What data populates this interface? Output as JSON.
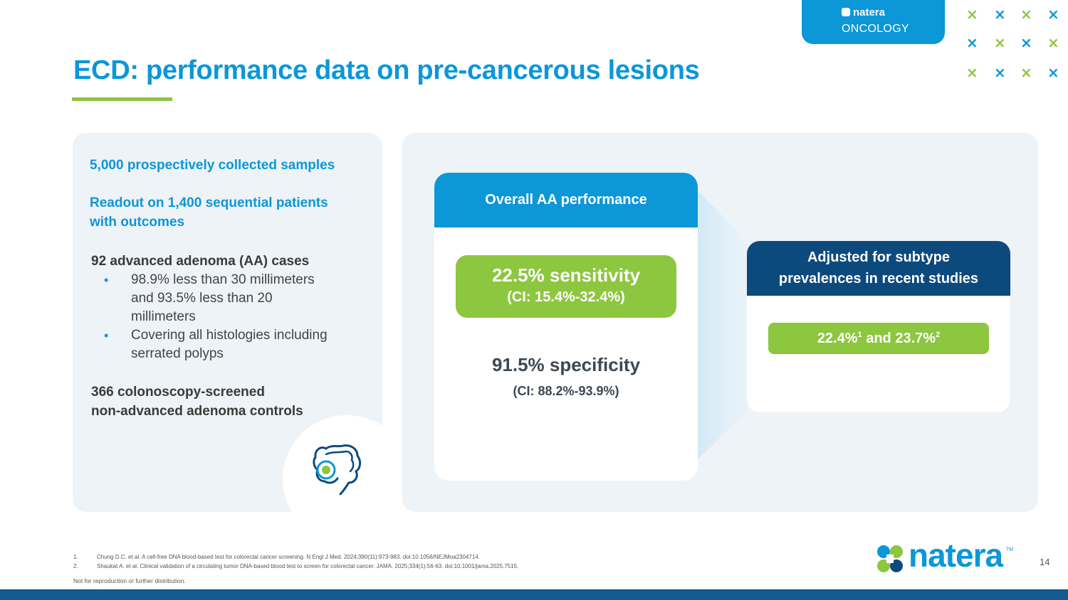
{
  "header": {
    "brand": "natera",
    "division": "ONCOLOGY",
    "accent_blue": "#0b97d8",
    "accent_green": "#8dc63f",
    "navy": "#0c4a7e"
  },
  "title": "ECD: performance data on pre-cancerous lesions",
  "left_panel": {
    "line1": "5,000 prospectively collected samples",
    "line2a": "Readout on 1,400 sequential patients",
    "line2b": "with outcomes",
    "aa_cases": "92 advanced adenoma (AA) cases",
    "bullets": [
      [
        "98.9% less than 30 millimeters",
        "and 93.5% less than 20",
        "millimeters"
      ],
      [
        "Covering all histologies including",
        "serrated polyps"
      ]
    ],
    "controls_a": "366 colonoscopy-screened",
    "controls_b": "non-advanced adenoma controls",
    "icon": "colon-icon"
  },
  "main_card": {
    "header": "Overall AA performance",
    "sensitivity": "22.5% sensitivity",
    "sensitivity_ci": "(CI: 15.4%-32.4%)",
    "specificity": "91.5% specificity",
    "specificity_ci": "(CI: 88.2%-93.9%)"
  },
  "adjusted_card": {
    "header_a": "Adjusted for subtype",
    "header_b": "prevalences in recent studies",
    "value1": "22.4%",
    "ref1": "1",
    "joiner": "and",
    "value2": "23.7%",
    "ref2": "2"
  },
  "references": [
    {
      "n": "1.",
      "text": "Chung D.C. et al. A cell-free DNA blood-based test for colorectal cancer screening. N Engl J Med. 2024;390(11):973-983. doi:10.1056/NEJMoa2304714."
    },
    {
      "n": "2.",
      "text": "Shaukat A. et al. Clinical validation of a circulating tumor DNA-based blood test to screen for colorectal cancer. JAMA. 2025;334(1):56-63. doi:10.1001/jama.2025.7515."
    }
  ],
  "note": "Not for reproduction or further distribution.",
  "page_number": "14",
  "footer_logo": "natera",
  "footer_logo_tm": "TM"
}
